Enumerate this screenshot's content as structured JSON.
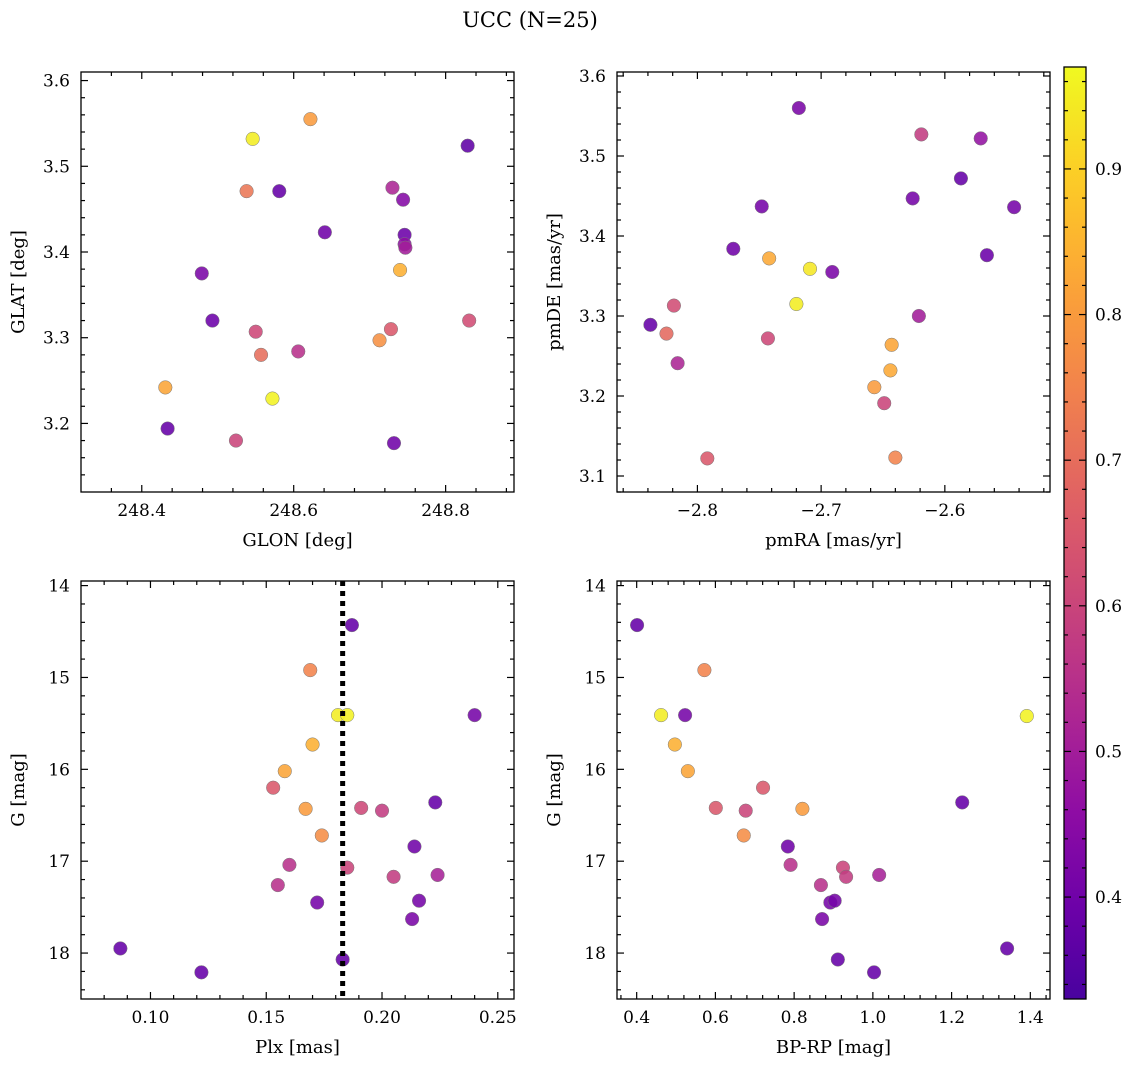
{
  "figure": {
    "title": "UCC (N=25)",
    "colorbar": {
      "range": [
        0.33,
        0.97
      ],
      "ticks": [
        "0.4",
        "0.5",
        "0.6",
        "0.7",
        "0.8",
        "0.9"
      ],
      "colormap": "plasma"
    }
  },
  "chart_data": [
    {
      "type": "scatter",
      "panel": "top-left",
      "xlabel": "GLON [deg]",
      "ylabel": "GLAT [deg]",
      "xlim": [
        248.32,
        248.89
      ],
      "ylim": [
        3.12,
        3.61
      ],
      "xticks": [
        248.4,
        248.6,
        248.8
      ],
      "xtick_labels": [
        "248.4",
        "248.6",
        "248.8"
      ],
      "yticks": [
        3.2,
        3.3,
        3.4,
        3.5,
        3.6
      ],
      "ytick_labels": [
        "3.2",
        "3.3",
        "3.4",
        "3.5",
        "3.6"
      ],
      "y_inverted": false,
      "points": [
        {
          "x": 248.431,
          "y": 3.242,
          "c": 0.82
        },
        {
          "x": 248.434,
          "y": 3.194,
          "c": 0.38
        },
        {
          "x": 248.479,
          "y": 3.375,
          "c": 0.42
        },
        {
          "x": 248.493,
          "y": 3.32,
          "c": 0.39
        },
        {
          "x": 248.524,
          "y": 3.18,
          "c": 0.6
        },
        {
          "x": 248.538,
          "y": 3.471,
          "c": 0.72
        },
        {
          "x": 248.546,
          "y": 3.532,
          "c": 0.95
        },
        {
          "x": 248.55,
          "y": 3.307,
          "c": 0.61
        },
        {
          "x": 248.557,
          "y": 3.28,
          "c": 0.7
        },
        {
          "x": 248.572,
          "y": 3.229,
          "c": 0.96
        },
        {
          "x": 248.581,
          "y": 3.471,
          "c": 0.38
        },
        {
          "x": 248.606,
          "y": 3.284,
          "c": 0.55
        },
        {
          "x": 248.622,
          "y": 3.555,
          "c": 0.8
        },
        {
          "x": 248.641,
          "y": 3.423,
          "c": 0.4
        },
        {
          "x": 248.713,
          "y": 3.297,
          "c": 0.78
        },
        {
          "x": 248.728,
          "y": 3.31,
          "c": 0.65
        },
        {
          "x": 248.73,
          "y": 3.475,
          "c": 0.52
        },
        {
          "x": 248.732,
          "y": 3.177,
          "c": 0.4
        },
        {
          "x": 248.74,
          "y": 3.379,
          "c": 0.84
        },
        {
          "x": 248.744,
          "y": 3.461,
          "c": 0.44
        },
        {
          "x": 248.746,
          "y": 3.42,
          "c": 0.39
        },
        {
          "x": 248.746,
          "y": 3.409,
          "c": 0.46
        },
        {
          "x": 248.747,
          "y": 3.405,
          "c": 0.5
        },
        {
          "x": 248.829,
          "y": 3.524,
          "c": 0.37
        },
        {
          "x": 248.831,
          "y": 3.32,
          "c": 0.62
        }
      ]
    },
    {
      "type": "scatter",
      "panel": "top-right",
      "xlabel": "pmRA [mas/yr]",
      "ylabel": "pmDE [mas/yr]",
      "xlim": [
        -2.865,
        -2.515
      ],
      "ylim": [
        3.08,
        3.605
      ],
      "xticks": [
        -2.8,
        -2.7,
        -2.6
      ],
      "xtick_labels": [
        "−2.8",
        "−2.7",
        "−2.6"
      ],
      "yticks": [
        3.1,
        3.2,
        3.3,
        3.4,
        3.5,
        3.6
      ],
      "ytick_labels": [
        "3.1",
        "3.2",
        "3.3",
        "3.4",
        "3.5",
        "3.6"
      ],
      "y_inverted": false,
      "points": [
        {
          "x": -2.838,
          "y": 3.289,
          "c": 0.38
        },
        {
          "x": -2.825,
          "y": 3.278,
          "c": 0.69
        },
        {
          "x": -2.819,
          "y": 3.313,
          "c": 0.62
        },
        {
          "x": -2.816,
          "y": 3.241,
          "c": 0.52
        },
        {
          "x": -2.792,
          "y": 3.122,
          "c": 0.65
        },
        {
          "x": -2.771,
          "y": 3.384,
          "c": 0.4
        },
        {
          "x": -2.748,
          "y": 3.437,
          "c": 0.41
        },
        {
          "x": -2.743,
          "y": 3.272,
          "c": 0.61
        },
        {
          "x": -2.742,
          "y": 3.372,
          "c": 0.83
        },
        {
          "x": -2.72,
          "y": 3.315,
          "c": 0.95
        },
        {
          "x": -2.718,
          "y": 3.56,
          "c": 0.42
        },
        {
          "x": -2.709,
          "y": 3.359,
          "c": 0.94
        },
        {
          "x": -2.691,
          "y": 3.355,
          "c": 0.42
        },
        {
          "x": -2.657,
          "y": 3.211,
          "c": 0.8
        },
        {
          "x": -2.649,
          "y": 3.191,
          "c": 0.6
        },
        {
          "x": -2.644,
          "y": 3.232,
          "c": 0.83
        },
        {
          "x": -2.643,
          "y": 3.264,
          "c": 0.82
        },
        {
          "x": -2.64,
          "y": 3.123,
          "c": 0.75
        },
        {
          "x": -2.626,
          "y": 3.447,
          "c": 0.41
        },
        {
          "x": -2.621,
          "y": 3.3,
          "c": 0.5
        },
        {
          "x": -2.619,
          "y": 3.527,
          "c": 0.58
        },
        {
          "x": -2.587,
          "y": 3.472,
          "c": 0.38
        },
        {
          "x": -2.571,
          "y": 3.522,
          "c": 0.47
        },
        {
          "x": -2.566,
          "y": 3.376,
          "c": 0.39
        },
        {
          "x": -2.544,
          "y": 3.436,
          "c": 0.41
        }
      ]
    },
    {
      "type": "scatter",
      "panel": "bottom-left",
      "xlabel": "Plx [mas]",
      "ylabel": "G [mag]",
      "xlim": [
        0.07,
        0.257
      ],
      "ylim": [
        13.95,
        18.5
      ],
      "xticks": [
        0.1,
        0.15,
        0.2,
        0.25
      ],
      "xtick_labels": [
        "0.10",
        "0.15",
        "0.20",
        "0.25"
      ],
      "yticks": [
        14,
        15,
        16,
        17,
        18
      ],
      "ytick_labels": [
        "14",
        "15",
        "16",
        "17",
        "18"
      ],
      "y_inverted": true,
      "vline": 0.183,
      "points": [
        {
          "x": 0.087,
          "y": 17.95,
          "c": 0.38
        },
        {
          "x": 0.122,
          "y": 18.21,
          "c": 0.38
        },
        {
          "x": 0.153,
          "y": 16.2,
          "c": 0.65
        },
        {
          "x": 0.155,
          "y": 17.26,
          "c": 0.55
        },
        {
          "x": 0.158,
          "y": 16.02,
          "c": 0.82
        },
        {
          "x": 0.16,
          "y": 17.04,
          "c": 0.55
        },
        {
          "x": 0.167,
          "y": 16.43,
          "c": 0.8
        },
        {
          "x": 0.169,
          "y": 14.92,
          "c": 0.75
        },
        {
          "x": 0.17,
          "y": 15.73,
          "c": 0.84
        },
        {
          "x": 0.172,
          "y": 17.45,
          "c": 0.41
        },
        {
          "x": 0.174,
          "y": 16.72,
          "c": 0.77
        },
        {
          "x": 0.181,
          "y": 15.41,
          "c": 0.95
        },
        {
          "x": 0.183,
          "y": 18.07,
          "c": 0.38
        },
        {
          "x": 0.185,
          "y": 15.41,
          "c": 0.96
        },
        {
          "x": 0.185,
          "y": 17.07,
          "c": 0.6
        },
        {
          "x": 0.187,
          "y": 14.43,
          "c": 0.38
        },
        {
          "x": 0.191,
          "y": 16.42,
          "c": 0.61
        },
        {
          "x": 0.2,
          "y": 16.45,
          "c": 0.58
        },
        {
          "x": 0.205,
          "y": 17.17,
          "c": 0.58
        },
        {
          "x": 0.213,
          "y": 17.63,
          "c": 0.42
        },
        {
          "x": 0.214,
          "y": 16.84,
          "c": 0.4
        },
        {
          "x": 0.216,
          "y": 17.43,
          "c": 0.41
        },
        {
          "x": 0.223,
          "y": 16.36,
          "c": 0.38
        },
        {
          "x": 0.224,
          "y": 17.15,
          "c": 0.51
        },
        {
          "x": 0.24,
          "y": 15.41,
          "c": 0.41
        }
      ]
    },
    {
      "type": "scatter",
      "panel": "bottom-right",
      "xlabel": "BP-RP [mag]",
      "ylabel": "G [mag]",
      "xlim": [
        0.35,
        1.45
      ],
      "ylim": [
        13.95,
        18.5
      ],
      "xticks": [
        0.4,
        0.6,
        0.8,
        1.0,
        1.2,
        1.4
      ],
      "xtick_labels": [
        "0.4",
        "0.6",
        "0.8",
        "1.0",
        "1.2",
        "1.4"
      ],
      "yticks": [
        14,
        15,
        16,
        17,
        18
      ],
      "ytick_labels": [
        "14",
        "15",
        "16",
        "17",
        "18"
      ],
      "y_inverted": true,
      "points": [
        {
          "x": 0.401,
          "y": 14.43,
          "c": 0.38
        },
        {
          "x": 0.462,
          "y": 15.41,
          "c": 0.95
        },
        {
          "x": 0.497,
          "y": 15.73,
          "c": 0.84
        },
        {
          "x": 0.523,
          "y": 15.41,
          "c": 0.41
        },
        {
          "x": 0.53,
          "y": 16.02,
          "c": 0.82
        },
        {
          "x": 0.572,
          "y": 14.92,
          "c": 0.75
        },
        {
          "x": 0.601,
          "y": 16.42,
          "c": 0.65
        },
        {
          "x": 0.672,
          "y": 16.72,
          "c": 0.77
        },
        {
          "x": 0.677,
          "y": 16.45,
          "c": 0.6
        },
        {
          "x": 0.721,
          "y": 16.2,
          "c": 0.65
        },
        {
          "x": 0.784,
          "y": 16.84,
          "c": 0.4
        },
        {
          "x": 0.791,
          "y": 17.04,
          "c": 0.55
        },
        {
          "x": 0.821,
          "y": 16.43,
          "c": 0.8
        },
        {
          "x": 0.868,
          "y": 17.26,
          "c": 0.55
        },
        {
          "x": 0.871,
          "y": 17.63,
          "c": 0.42
        },
        {
          "x": 0.892,
          "y": 17.45,
          "c": 0.41
        },
        {
          "x": 0.903,
          "y": 17.43,
          "c": 0.41
        },
        {
          "x": 0.911,
          "y": 18.07,
          "c": 0.38
        },
        {
          "x": 0.924,
          "y": 17.07,
          "c": 0.6
        },
        {
          "x": 0.932,
          "y": 17.17,
          "c": 0.58
        },
        {
          "x": 1.003,
          "y": 18.21,
          "c": 0.38
        },
        {
          "x": 1.016,
          "y": 17.15,
          "c": 0.51
        },
        {
          "x": 1.227,
          "y": 16.36,
          "c": 0.38
        },
        {
          "x": 1.341,
          "y": 17.95,
          "c": 0.38
        },
        {
          "x": 1.391,
          "y": 15.42,
          "c": 0.96
        }
      ]
    }
  ]
}
